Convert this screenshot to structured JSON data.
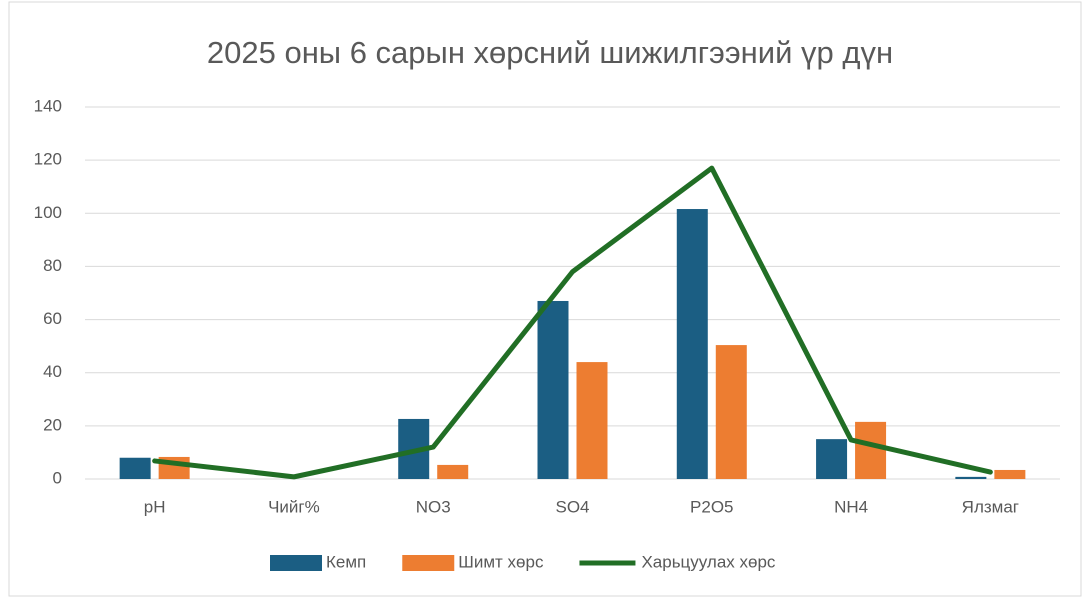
{
  "chart_data": {
    "type": "bar_line",
    "title": "2025 оны 6 сарын хөрсний шижилгээний үр дүн",
    "categories": [
      "pH",
      "Чийг%",
      "NO3",
      "SO4",
      "P2O5",
      "NH4",
      "Ялзмаг"
    ],
    "series": [
      {
        "name": "Кемп",
        "type": "bar",
        "color": "#1b5e83",
        "values": [
          8,
          0,
          22.6,
          67,
          101.6,
          15,
          0.8
        ]
      },
      {
        "name": "Шимт хөрс",
        "type": "bar",
        "color": "#ed7d31",
        "values": [
          8.3,
          0,
          5.3,
          44,
          50.4,
          21.5,
          3.4
        ]
      },
      {
        "name": "Харьцуулах хөрс",
        "type": "line",
        "color": "#216e25",
        "values": [
          6.8,
          0.8,
          12,
          78,
          117,
          14.7,
          2.6
        ]
      }
    ],
    "ylim": [
      0,
      140
    ],
    "yticks": [
      0,
      20,
      40,
      60,
      80,
      100,
      120,
      140
    ],
    "grid": true,
    "legend": "bottom"
  }
}
